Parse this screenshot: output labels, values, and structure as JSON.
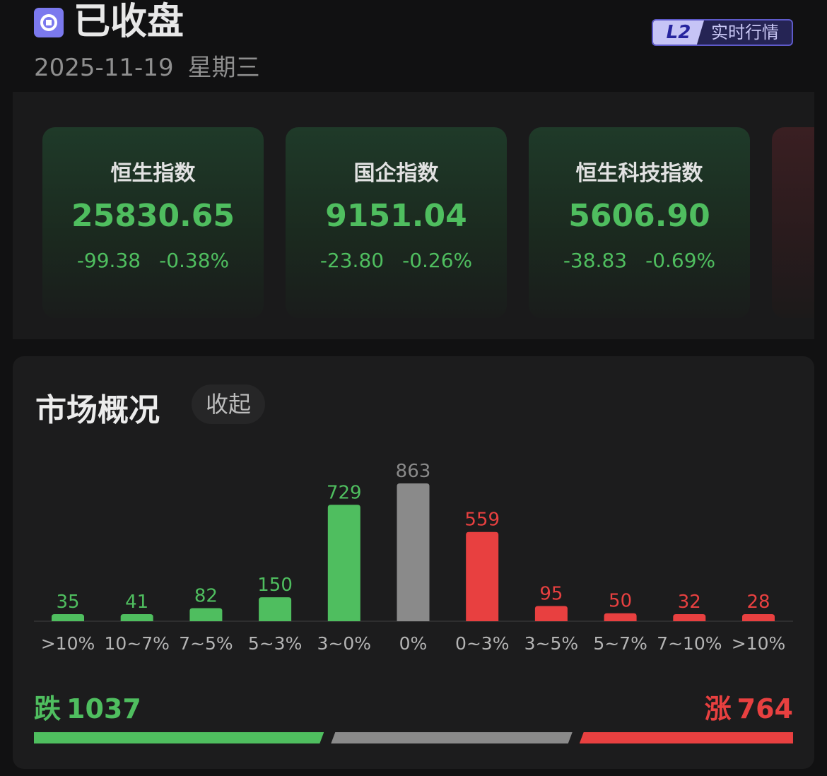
{
  "status": {
    "title": "已收盘",
    "date": "2025-11-19",
    "weekday": "星期三",
    "icon": "market-closed-icon"
  },
  "badge": {
    "logo": "L2",
    "label": "实时行情"
  },
  "indices": [
    {
      "name": "恒生指数",
      "value": "25830.65",
      "change": "-99.38",
      "change_pct": "-0.38%"
    },
    {
      "name": "国企指数",
      "value": "9151.04",
      "change": "-23.80",
      "change_pct": "-0.26%"
    },
    {
      "name": "恒生科技指数",
      "value": "5606.90",
      "change": "-38.83",
      "change_pct": "-0.69%"
    }
  ],
  "overview": {
    "title": "市场概况",
    "collapse_label": "收起"
  },
  "colors": {
    "down": "#4fbe5f",
    "flat": "#8a8a8a",
    "up": "#e84040"
  },
  "chart_data": {
    "type": "bar",
    "categories": [
      ">10%",
      "10~7%",
      "7~5%",
      "5~3%",
      "3~0%",
      "0%",
      "0~3%",
      "3~5%",
      "5~7%",
      "7~10%",
      ">10%"
    ],
    "values": [
      35,
      41,
      82,
      150,
      729,
      863,
      559,
      95,
      50,
      32,
      28
    ],
    "groups": [
      "down",
      "down",
      "down",
      "down",
      "down",
      "flat",
      "up",
      "up",
      "up",
      "up",
      "up"
    ],
    "ylim": [
      0,
      863
    ]
  },
  "summary": {
    "down_label": "跌",
    "down_count": "1037",
    "flat_count": 863,
    "up_label": "涨",
    "up_count": "764"
  }
}
